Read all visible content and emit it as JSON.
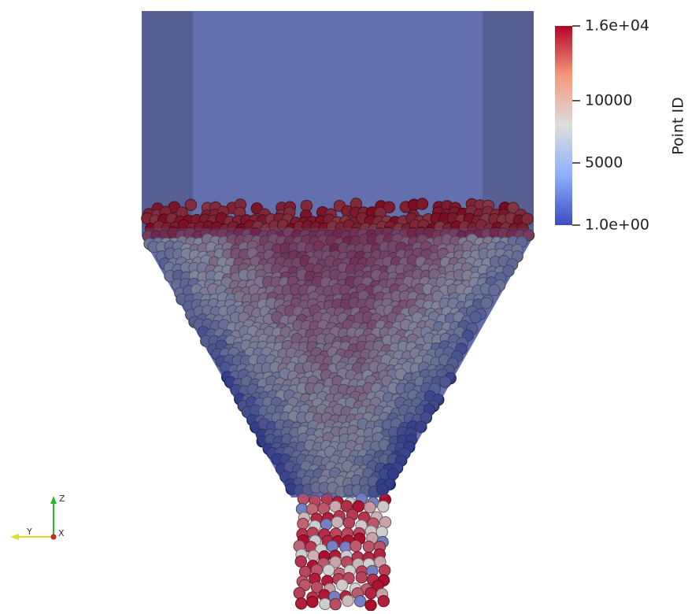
{
  "colorbar": {
    "title": "Point ID",
    "range": [
      1,
      16000
    ],
    "ticks": [
      {
        "value": 16000,
        "label": "1.6e+04"
      },
      10000,
      5000,
      {
        "value": 1,
        "label": "1.0e+00"
      }
    ]
  },
  "axes": {
    "z": "Z",
    "y": "Y",
    "x": "X"
  }
}
